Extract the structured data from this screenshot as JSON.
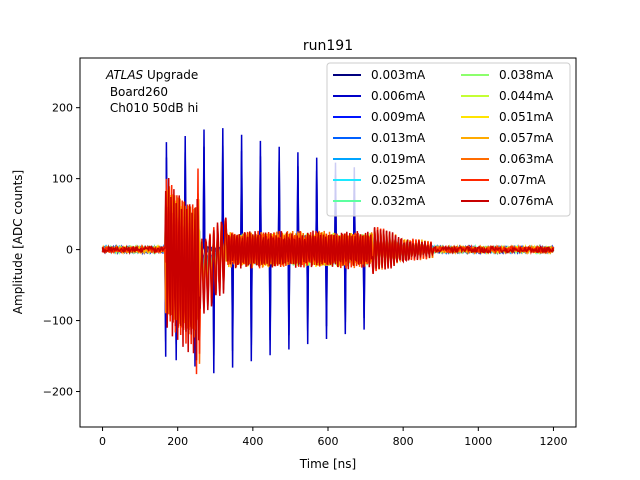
{
  "chart_data": {
    "type": "line",
    "title": "run191",
    "xlabel": "Time [ns]",
    "ylabel": "Amplitude [ADC counts]",
    "xlim": [
      -60,
      1260
    ],
    "ylim": [
      -250,
      270
    ],
    "xticks": [
      0,
      200,
      400,
      600,
      800,
      1000,
      1200
    ],
    "yticks": [
      -200,
      -100,
      0,
      100,
      200
    ],
    "grid": false,
    "legend": {
      "placement": "top-right",
      "columns": 2
    },
    "annotation": {
      "italic": "ATLAS",
      "rest": " Upgrade",
      "line2": " Board260",
      "line3": " Ch010 50dB hi"
    },
    "series": [
      {
        "name": "0.003mA",
        "color": "#00007f"
      },
      {
        "name": "0.006mA",
        "color": "#0000c8"
      },
      {
        "name": "0.009mA",
        "color": "#0014ff"
      },
      {
        "name": "0.013mA",
        "color": "#0060ff"
      },
      {
        "name": "0.019mA",
        "color": "#00a4ff"
      },
      {
        "name": "0.025mA",
        "color": "#1ce8ff"
      },
      {
        "name": "0.032mA",
        "color": "#5cffa0"
      },
      {
        "name": "0.038mA",
        "color": "#8cff6c"
      },
      {
        "name": "0.044mA",
        "color": "#c4ff34"
      },
      {
        "name": "0.051mA",
        "color": "#ffe400"
      },
      {
        "name": "0.057mA",
        "color": "#ffaa00"
      },
      {
        "name": "0.063mA",
        "color": "#ff6c00"
      },
      {
        "name": "0.07mA",
        "color": "#ff2800"
      },
      {
        "name": "0.076mA",
        "color": "#c80000"
      }
    ]
  }
}
